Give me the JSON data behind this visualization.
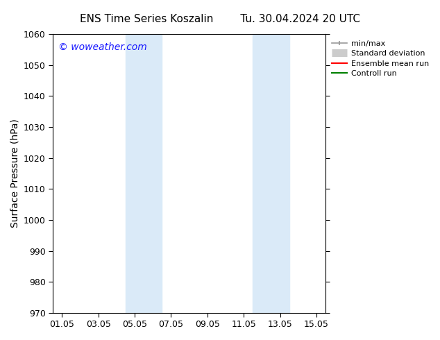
{
  "title": "ENS Time Series Koszalin        Tu. 30.04.2024 20 UTC",
  "ylabel": "Surface Pressure (hPa)",
  "xlabel": "",
  "ylim": [
    970,
    1060
  ],
  "yticks": [
    970,
    980,
    990,
    1000,
    1010,
    1020,
    1030,
    1040,
    1050,
    1060
  ],
  "xtick_labels": [
    "01.05",
    "03.05",
    "05.05",
    "07.05",
    "09.05",
    "11.05",
    "13.05",
    "15.05"
  ],
  "xtick_positions": [
    0,
    2,
    4,
    6,
    8,
    10,
    12,
    14
  ],
  "xlim": [
    -0.5,
    14.5
  ],
  "watermark": "© woweather.com",
  "watermark_color": "#1a1aff",
  "background_color": "#ffffff",
  "plot_bg_color": "#ffffff",
  "shaded_regions": [
    {
      "x_start": 3.5,
      "x_end": 5.5,
      "color": "#daeaf8"
    },
    {
      "x_start": 10.5,
      "x_end": 12.5,
      "color": "#daeaf8"
    }
  ],
  "legend_entries": [
    {
      "label": "min/max",
      "color": "#999999",
      "lw": 1.2,
      "ls": "-",
      "type": "line_with_caps"
    },
    {
      "label": "Standard deviation",
      "color": "#cccccc",
      "lw": 8,
      "ls": "-",
      "type": "thick_line"
    },
    {
      "label": "Ensemble mean run",
      "color": "#ff0000",
      "lw": 1.5,
      "ls": "-",
      "type": "line"
    },
    {
      "label": "Controll run",
      "color": "#008000",
      "lw": 1.5,
      "ls": "-",
      "type": "line"
    }
  ],
  "title_fontsize": 11,
  "axis_label_fontsize": 10,
  "tick_fontsize": 9,
  "watermark_fontsize": 10,
  "legend_fontsize": 8
}
